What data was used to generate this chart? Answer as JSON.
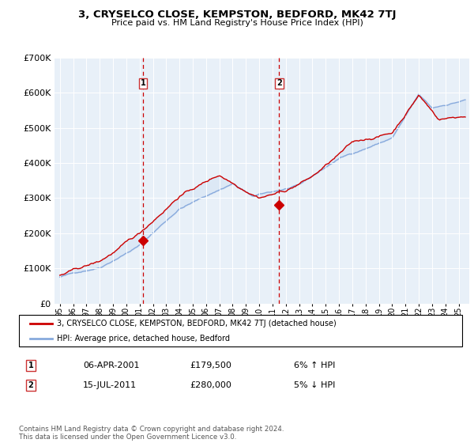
{
  "title": "3, CRYSELCO CLOSE, KEMPSTON, BEDFORD, MK42 7TJ",
  "subtitle": "Price paid vs. HM Land Registry's House Price Index (HPI)",
  "legend_line1": "3, CRYSELCO CLOSE, KEMPSTON, BEDFORD, MK42 7TJ (detached house)",
  "legend_line2": "HPI: Average price, detached house, Bedford",
  "transaction1_date": "06-APR-2001",
  "transaction1_price": "£179,500",
  "transaction1_hpi": "6% ↑ HPI",
  "transaction2_date": "15-JUL-2011",
  "transaction2_price": "£280,000",
  "transaction2_hpi": "5% ↓ HPI",
  "footer": "Contains HM Land Registry data © Crown copyright and database right 2024.\nThis data is licensed under the Open Government Licence v3.0.",
  "price_color": "#cc0000",
  "hpi_color": "#88aadd",
  "dashed_color": "#cc0000",
  "plot_bg_color": "#e8f0f8",
  "shaded_color": "#c8daf0",
  "ylim": [
    0,
    700000
  ],
  "yticks": [
    0,
    100000,
    200000,
    300000,
    400000,
    500000,
    600000,
    700000
  ],
  "transaction1_x": 2001.25,
  "transaction1_y": 179500,
  "transaction2_x": 2011.5,
  "transaction2_y": 280000,
  "xlim_left": 1994.6,
  "xlim_right": 2025.8
}
